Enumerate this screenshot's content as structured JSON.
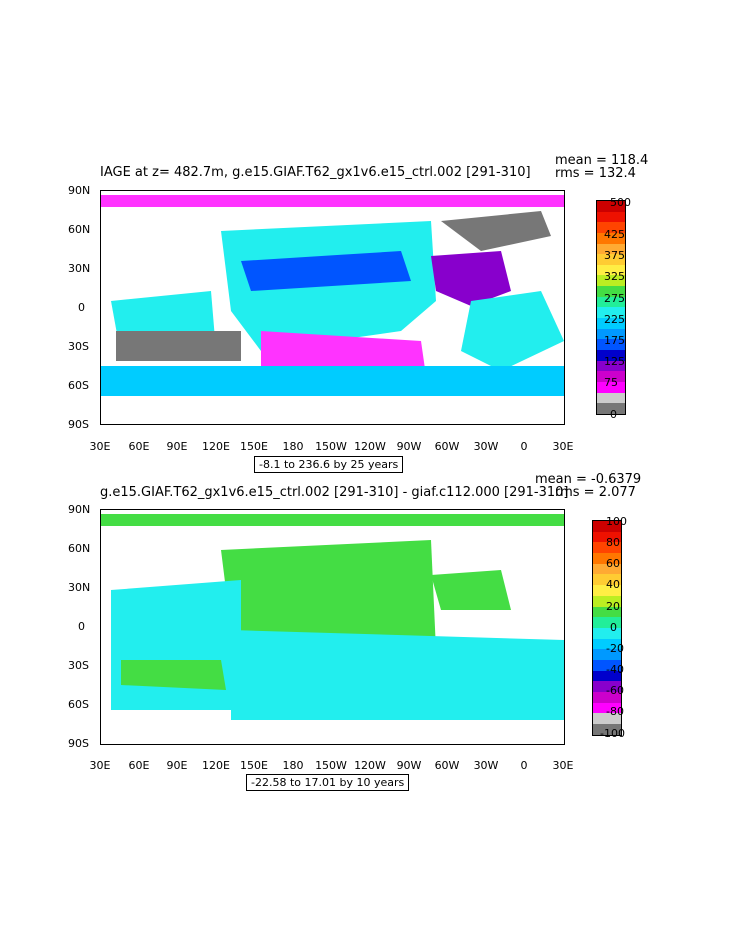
{
  "panels": [
    {
      "title": "IAGE at z= 482.7m, g.e15.GIAF.T62_gx1v6.e15_ctrl.002 [291-310]",
      "mean": "mean = 118.4",
      "rms": "rms = 132.4",
      "range_note": "-8.1 to 236.6 by 25 years",
      "colorbar_labels": [
        "500",
        "425",
        "375",
        "325",
        "275",
        "225",
        "175",
        "125",
        "75",
        "0"
      ],
      "colorbar_colors": [
        "#cc0000",
        "#ee1100",
        "#ff4400",
        "#ff7700",
        "#ffaa33",
        "#ffcc33",
        "#ffee44",
        "#bbee22",
        "#44dd44",
        "#22ee99",
        "#22eeee",
        "#00ccff",
        "#0099ff",
        "#0055ff",
        "#0000cc",
        "#8800cc",
        "#cc00cc",
        "#ff00ff",
        "#cccccc",
        "#777777"
      ]
    },
    {
      "title": "g.e15.GIAF.T62_gx1v6.e15_ctrl.002 [291-310] - giaf.c112.000 [291-310]",
      "mean": "mean = -0.6379",
      "rms": "rms = 2.077",
      "range_note": "-22.58 to 17.01 by 10 years",
      "colorbar_labels": [
        "100",
        "80",
        "60",
        "40",
        "20",
        "0",
        "-20",
        "-40",
        "-60",
        "-80",
        "-100"
      ],
      "colorbar_colors": [
        "#cc0000",
        "#ee1100",
        "#ff4400",
        "#ff7700",
        "#ffaa33",
        "#ffcc33",
        "#ffee44",
        "#bbee22",
        "#44dd44",
        "#22ee99",
        "#22eeee",
        "#00ccff",
        "#0099ff",
        "#0055ff",
        "#0000cc",
        "#8800cc",
        "#cc00cc",
        "#ff00ff",
        "#cccccc",
        "#777777"
      ]
    }
  ],
  "lat_ticks": [
    "90N",
    "60N",
    "30N",
    "0",
    "30S",
    "60S",
    "90S"
  ],
  "lon_ticks": [
    "30E",
    "60E",
    "90E",
    "120E",
    "150E",
    "180",
    "150W",
    "120W",
    "90W",
    "60W",
    "30W",
    "0",
    "30E"
  ]
}
